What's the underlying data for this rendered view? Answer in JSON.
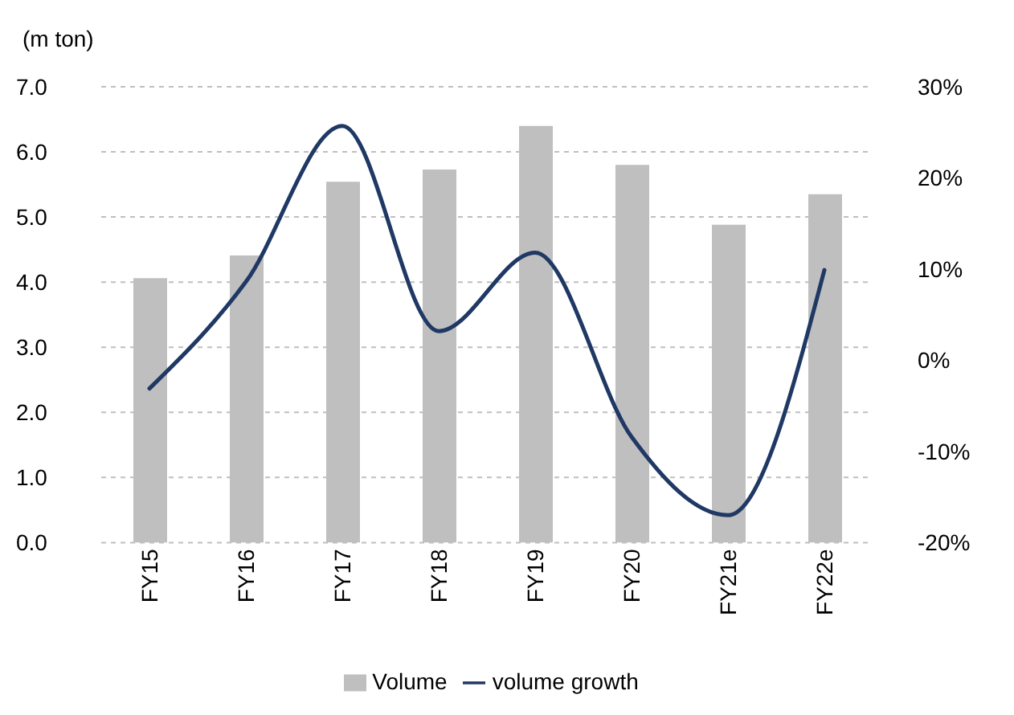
{
  "chart_data": {
    "type": "bar",
    "ylabel": "(m ton)",
    "categories": [
      "FY15",
      "FY16",
      "FY17",
      "FY18",
      "FY19",
      "FY20",
      "FY21e",
      "FY22e"
    ],
    "series": [
      {
        "name": "Volume",
        "color": "#bfbfbf",
        "values": [
          4.06,
          4.41,
          5.54,
          5.73,
          6.4,
          5.8,
          4.88,
          5.35
        ]
      },
      {
        "name": "volume growth",
        "type": "line",
        "axis": "y2",
        "color": "#1f3864",
        "values": [
          -3.1,
          8.6,
          25.7,
          3.2,
          11.8,
          -8.4,
          -17.0,
          9.9
        ]
      }
    ],
    "ylim": [
      0,
      7
    ],
    "yticks": [
      {
        "value": 0,
        "label": "0.0"
      },
      {
        "value": 1,
        "label": "1.0"
      },
      {
        "value": 2,
        "label": "2.0"
      },
      {
        "value": 3,
        "label": "3.0"
      },
      {
        "value": 4,
        "label": "4.0"
      },
      {
        "value": 5,
        "label": "5.0"
      },
      {
        "value": 6,
        "label": "6.0"
      },
      {
        "value": 7,
        "label": "7.0"
      }
    ],
    "y2lim": [
      -20,
      30
    ],
    "y2ticks": [
      {
        "value": -20,
        "label": "-20%"
      },
      {
        "value": -10,
        "label": "-10%"
      },
      {
        "value": 0,
        "label": "0%"
      },
      {
        "value": 10,
        "label": "10%"
      },
      {
        "value": 20,
        "label": "20%"
      },
      {
        "value": 30,
        "label": "30%"
      }
    ],
    "grid": "y",
    "legend": "bottom",
    "marker": "none",
    "line_style": "solid"
  }
}
